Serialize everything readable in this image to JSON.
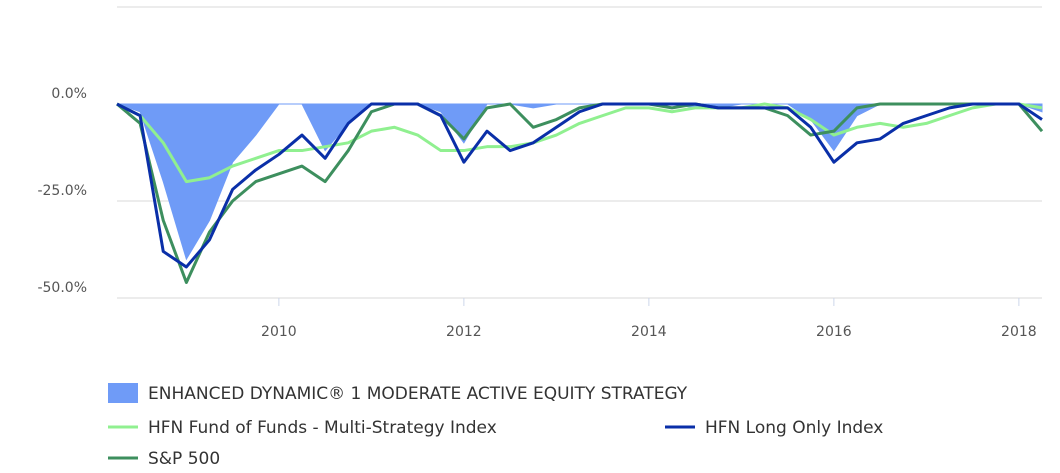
{
  "chart_data": {
    "type": "line",
    "x": [
      2008.25,
      2008.5,
      2008.75,
      2009,
      2009.25,
      2009.5,
      2009.75,
      2010,
      2010.25,
      2010.5,
      2010.75,
      2011,
      2011.25,
      2011.5,
      2011.75,
      2012,
      2012.25,
      2012.5,
      2012.75,
      2013,
      2013.25,
      2013.5,
      2013.75,
      2014,
      2014.25,
      2014.5,
      2014.75,
      2015,
      2015.25,
      2015.5,
      2015.75,
      2016,
      2016.25,
      2016.5,
      2016.75,
      2017,
      2017.25,
      2017.5,
      2017.75,
      2018,
      2018.25
    ],
    "series": [
      {
        "name": "ENHANCED DYNAMIC® 1 MODERATE ACTIVE EQUITY STRATEGY",
        "type": "area",
        "color": "#6f9bf7",
        "values": [
          0,
          -2,
          -20,
          -40,
          -30,
          -15,
          -8,
          0,
          0,
          -12,
          -5,
          0,
          0,
          0,
          -2,
          -10,
          0,
          0,
          -1,
          0,
          0,
          0,
          0,
          0,
          0,
          -1,
          -1,
          0,
          0,
          0,
          -4,
          -12,
          -3,
          0,
          0,
          0,
          0,
          0,
          0,
          0,
          -2
        ]
      },
      {
        "name": "HFN Fund of Funds - Multi-Strategy Index",
        "type": "line",
        "color": "#90f090",
        "values": [
          0,
          -3,
          -10,
          -20,
          -19,
          -16,
          -14,
          -12,
          -12,
          -11,
          -10,
          -7,
          -6,
          -8,
          -12,
          -12,
          -11,
          -11,
          -10,
          -8,
          -5,
          -3,
          -1,
          -1,
          -2,
          -1,
          -1,
          -1,
          0,
          -1,
          -4,
          -8,
          -6,
          -5,
          -6,
          -5,
          -3,
          -1,
          0,
          0,
          -1
        ]
      },
      {
        "name": "HFN Long Only Index",
        "type": "line",
        "color": "#0a2fa8",
        "values": [
          0,
          -3,
          -38,
          -42,
          -35,
          -22,
          -17,
          -13,
          -8,
          -14,
          -5,
          0,
          0,
          0,
          -3,
          -15,
          -7,
          -12,
          -10,
          -6,
          -2,
          0,
          0,
          0,
          0,
          0,
          -1,
          -1,
          -1,
          -1,
          -6,
          -15,
          -10,
          -9,
          -5,
          -3,
          -1,
          0,
          0,
          0,
          -4
        ]
      },
      {
        "name": "S&P 500",
        "type": "line",
        "color": "#3d8f5e",
        "values": [
          0,
          -5,
          -30,
          -46,
          -33,
          -25,
          -20,
          -18,
          -16,
          -20,
          -12,
          -2,
          0,
          0,
          -3,
          -9,
          -1,
          0,
          -6,
          -4,
          -1,
          0,
          0,
          0,
          -1,
          0,
          -1,
          -1,
          -1,
          -3,
          -8,
          -7,
          -1,
          0,
          0,
          0,
          0,
          0,
          0,
          0,
          -7
        ]
      }
    ],
    "xlim": [
      2008.25,
      2018.25
    ],
    "xticks": [
      2010,
      2012,
      2014,
      2016,
      2018
    ],
    "ylim": [
      -50,
      25
    ],
    "yticks": [
      {
        "value": -50,
        "label": "-50.0%"
      },
      {
        "value": -25,
        "label": "-25.0%"
      },
      {
        "value": 0,
        "label": "0.0%"
      }
    ],
    "grid": true
  }
}
